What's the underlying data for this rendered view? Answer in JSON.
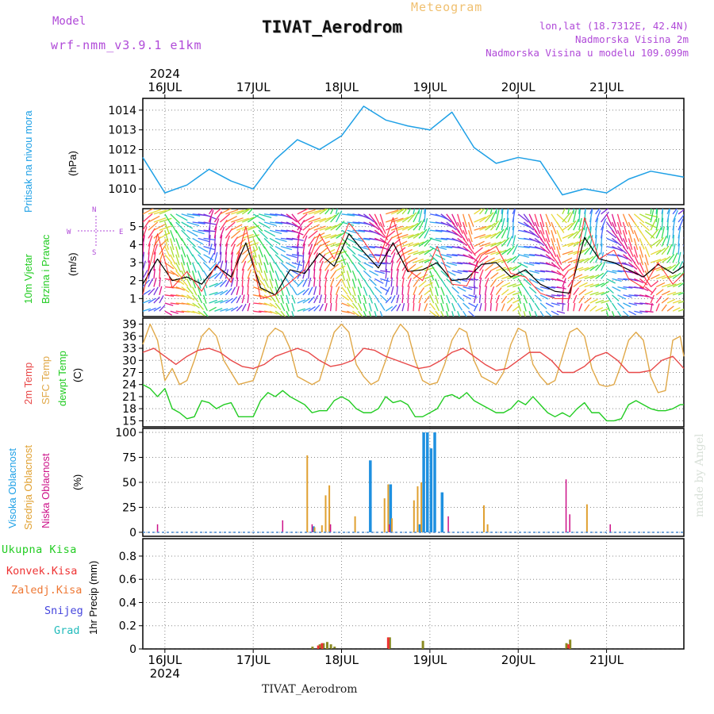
{
  "header": {
    "model_label": "Model",
    "model_name": "wrf-nmm_v3.9.1  e1km",
    "product": "Meteogram",
    "station": "TIVAT_Aerodrom",
    "lonlat": "lon,lat (18.7312E, 42.4N)",
    "elevation": "Nadmorska Visina 2m",
    "model_elevation": "Nadmorska Visina u modelu 109.099m",
    "footer_station": "TIVAT_Aerodrom",
    "credit": "made by Angel"
  },
  "time_axis": {
    "year": "2024",
    "days": [
      "16JUL",
      "17JUL",
      "18JUL",
      "19JUL",
      "20JUL",
      "21JUL"
    ],
    "start_hour_offset": -6,
    "end_hour_offset": 141
  },
  "colors": {
    "pressure": "#1ea0e6",
    "temp2m": "#e84848",
    "sfc_temp": "#e0a848",
    "dewpoint": "#22cc22",
    "wind_speed": "#000000",
    "gust": "#ff3030",
    "cloud_high": "#1e90e0",
    "cloud_mid": "#e0a030",
    "cloud_low": "#cc1188",
    "precip_total": "#22cc22",
    "precip_conv": "#ee3333",
    "precip_strat": "#ee7733",
    "snow": "#4444dd",
    "hail": "#22bbbb"
  },
  "panel_labels": {
    "pressure": {
      "label": "Pritisak na nivou mora",
      "unit": "(hPa)"
    },
    "wind": {
      "label1": "10m Vjetar",
      "label2": "Brzina i Pravac",
      "unit": "(m/s)",
      "compass": [
        "N",
        "S",
        "W",
        "E"
      ]
    },
    "temp": {
      "l1": "2m Temp",
      "l2": "SFC Temp",
      "l3": "dewpt Temp",
      "unit": "(C)"
    },
    "cloud": {
      "l1": "Visoka Oblacnost",
      "l2": "Srednja Oblacnost",
      "l3": "Niska Oblacnost",
      "unit": "(%)"
    },
    "precip": {
      "items": [
        "Ukupna Kisa",
        "Konvek.Kisa",
        "Zaledj.Kisa",
        "Snijeg",
        "Grad"
      ],
      "axis": "1hr Precip (mm)"
    }
  },
  "chart_data": [
    {
      "type": "line",
      "id": "pressure",
      "ylim": [
        1009.2,
        1014.6
      ],
      "yticks": [
        1010,
        1011,
        1012,
        1013,
        1014
      ],
      "series": [
        {
          "x": [
            -6,
            0,
            6,
            12,
            18,
            24,
            30,
            36,
            42,
            48,
            54,
            60,
            66,
            72,
            78,
            84,
            90,
            96,
            102,
            108,
            114,
            120,
            126,
            132,
            138,
            141
          ],
          "values": [
            1011.6,
            1009.8,
            1010.2,
            1011.0,
            1010.4,
            1010.0,
            1011.5,
            1012.5,
            1012.0,
            1012.7,
            1014.2,
            1013.5,
            1013.2,
            1013.0,
            1013.9,
            1012.1,
            1011.3,
            1011.6,
            1011.4,
            1009.7,
            1010.0,
            1009.8,
            1010.5,
            1010.9,
            1010.7,
            1010.6
          ]
        }
      ]
    },
    {
      "type": "line",
      "id": "wind",
      "ylim": [
        0,
        6
      ],
      "yticks": [
        1,
        2,
        3,
        4,
        5
      ],
      "series": [
        {
          "x": [
            -6,
            -2,
            2,
            6,
            10,
            14,
            18,
            22,
            26,
            30,
            34,
            38,
            42,
            46,
            50,
            54,
            58,
            62,
            66,
            70,
            74,
            78,
            82,
            86,
            90,
            94,
            98,
            102,
            106,
            110,
            114,
            118,
            122,
            126,
            130,
            134,
            138,
            141
          ],
          "values": [
            1.8,
            3.2,
            2.0,
            2.2,
            1.8,
            2.8,
            2.2,
            4.1,
            1.6,
            1.2,
            2.6,
            2.4,
            3.5,
            2.8,
            4.6,
            3.6,
            2.7,
            4.1,
            2.5,
            2.6,
            3.0,
            2.0,
            2.1,
            2.9,
            3.0,
            2.2,
            2.6,
            1.8,
            1.4,
            1.3,
            4.4,
            3.2,
            3.0,
            2.6,
            2.2,
            2.9,
            2.4,
            2.8
          ]
        },
        {
          "x": [
            -6,
            -2,
            2,
            6,
            10,
            14,
            18,
            22,
            26,
            30,
            34,
            38,
            42,
            46,
            50,
            54,
            58,
            62,
            66,
            70,
            74,
            78,
            82,
            86,
            90,
            94,
            98,
            102,
            106,
            110,
            114,
            118,
            122,
            126,
            130,
            134,
            138,
            141
          ],
          "values": [
            1.2,
            4.6,
            1.6,
            2.5,
            1.4,
            2.9,
            1.9,
            5.0,
            1.0,
            1.2,
            1.9,
            2.6,
            4.6,
            3.2,
            5.2,
            4.2,
            3.0,
            5.5,
            2.6,
            2.0,
            3.9,
            1.8,
            1.7,
            3.4,
            3.9,
            2.4,
            2.2,
            1.3,
            1.0,
            1.0,
            5.5,
            3.2,
            3.7,
            2.1,
            1.6,
            3.0,
            1.8,
            2.4
          ]
        }
      ],
      "wind_direction_pattern": "diurnal"
    },
    {
      "type": "line",
      "id": "temp",
      "ylim": [
        13.5,
        40.5
      ],
      "yticks": [
        15,
        18,
        21,
        24,
        27,
        30,
        33,
        36,
        39
      ],
      "series": [
        {
          "x": [
            -6,
            -3,
            0,
            3,
            6,
            9,
            12,
            15,
            18,
            21,
            24,
            27,
            30,
            33,
            36,
            39,
            42,
            45,
            48,
            51,
            54,
            57,
            60,
            63,
            66,
            69,
            72,
            75,
            78,
            81,
            84,
            87,
            90,
            93,
            96,
            99,
            102,
            105,
            108,
            111,
            114,
            117,
            120,
            123,
            126,
            129,
            132,
            135,
            138,
            141
          ],
          "values": [
            32,
            33,
            31,
            29,
            31,
            32.5,
            33,
            32,
            30,
            28.5,
            28,
            29,
            31,
            32,
            33,
            32,
            30,
            28.5,
            29,
            30,
            33,
            32.5,
            31,
            30,
            29,
            28,
            28.5,
            30,
            32,
            33,
            31,
            29,
            27.5,
            28,
            30,
            32,
            32,
            30,
            27,
            27,
            28.5,
            31,
            32,
            30,
            27,
            27,
            27.5,
            30,
            31,
            28
          ]
        },
        {
          "x": [
            -6,
            -4,
            -2,
            0,
            2,
            4,
            6,
            8,
            10,
            12,
            14,
            16,
            18,
            20,
            22,
            24,
            26,
            28,
            30,
            32,
            34,
            36,
            38,
            40,
            42,
            44,
            46,
            48,
            50,
            52,
            54,
            56,
            58,
            60,
            62,
            64,
            66,
            68,
            70,
            72,
            74,
            76,
            78,
            80,
            82,
            84,
            86,
            88,
            90,
            92,
            94,
            96,
            98,
            100,
            102,
            104,
            106,
            108,
            110,
            112,
            114,
            116,
            118,
            120,
            122,
            124,
            126,
            128,
            130,
            132,
            134,
            136,
            138,
            140,
            141
          ],
          "values": [
            34,
            39,
            35,
            25,
            28,
            24,
            25,
            30,
            36,
            38,
            36,
            30,
            27,
            24,
            24.5,
            25,
            30,
            36,
            38,
            37,
            33,
            26,
            25,
            24,
            25,
            31,
            37,
            39,
            37,
            29,
            26,
            24,
            25,
            30,
            36,
            39,
            37,
            30,
            25,
            24,
            24.5,
            29,
            35,
            38,
            37,
            30,
            26,
            25,
            24,
            27,
            34,
            38,
            37,
            29,
            26,
            24,
            25,
            31,
            37,
            38,
            36,
            28,
            24,
            23.5,
            24,
            29,
            35,
            37,
            35,
            26,
            22,
            22.5,
            35,
            36,
            31
          ]
        },
        {
          "x": [
            -6,
            -4,
            -2,
            0,
            2,
            4,
            6,
            8,
            10,
            12,
            14,
            16,
            18,
            20,
            22,
            24,
            26,
            28,
            30,
            32,
            34,
            36,
            38,
            40,
            42,
            44,
            46,
            48,
            50,
            52,
            54,
            56,
            58,
            60,
            62,
            64,
            66,
            68,
            70,
            72,
            74,
            76,
            78,
            80,
            82,
            84,
            86,
            88,
            90,
            92,
            94,
            96,
            98,
            100,
            102,
            104,
            106,
            108,
            110,
            112,
            114,
            116,
            118,
            120,
            122,
            124,
            126,
            128,
            130,
            132,
            134,
            136,
            138,
            140,
            141
          ],
          "values": [
            24,
            23,
            21,
            23,
            18,
            17,
            15.5,
            16,
            20,
            19.5,
            18,
            19,
            19.5,
            16,
            16,
            16,
            20,
            22,
            21,
            22.5,
            21,
            20,
            19,
            17,
            17.5,
            17.5,
            20,
            21,
            20,
            18,
            17,
            17,
            18,
            21,
            19.5,
            20,
            19,
            16,
            16,
            17,
            18,
            21,
            21.5,
            20.5,
            22,
            20,
            19,
            18,
            17,
            17,
            18,
            20,
            19,
            21,
            19,
            17,
            16,
            17,
            16,
            18,
            19.5,
            17,
            17,
            15,
            15,
            15.5,
            19,
            20,
            19,
            18,
            17.5,
            17.5,
            18,
            19,
            19
          ]
        }
      ]
    },
    {
      "type": "bar",
      "id": "cloud",
      "ylim": [
        -4,
        104
      ],
      "yticks": [
        0,
        25,
        50,
        75,
        100
      ],
      "series": [
        {
          "name": "high",
          "x": [
            40,
            55.5,
            61,
            69,
            70,
            71,
            72,
            73,
            75
          ],
          "values": [
            6,
            72,
            48,
            8,
            100,
            100,
            84,
            100,
            40
          ]
        },
        {
          "name": "mid",
          "x": [
            39,
            41,
            43,
            44,
            45,
            52,
            60,
            61,
            62,
            68,
            69,
            70,
            87,
            88,
            115
          ],
          "values": [
            77,
            5,
            7,
            37,
            47,
            16,
            34,
            48,
            14,
            32,
            46,
            50,
            27,
            8,
            28
          ]
        },
        {
          "name": "low",
          "x": [
            -2,
            32,
            40,
            45,
            61,
            77,
            109,
            110,
            121
          ],
          "values": [
            8,
            12,
            8,
            8,
            8,
            16,
            53,
            18,
            8
          ]
        }
      ]
    },
    {
      "type": "bar",
      "id": "precip",
      "ylim": [
        0,
        0.95
      ],
      "yticks": [
        0,
        0.2,
        0.4,
        0.6,
        0.8
      ],
      "series": [
        {
          "name": "total",
          "x": [
            40,
            42,
            43,
            44,
            45,
            46,
            61,
            70,
            109,
            110
          ],
          "values": [
            0.02,
            0.04,
            0.05,
            0.06,
            0.04,
            0.02,
            0.1,
            0.07,
            0.05,
            0.08
          ]
        },
        {
          "name": "convective",
          "x": [
            42,
            43,
            61,
            110
          ],
          "values": [
            0.03,
            0.05,
            0.1,
            0.04
          ]
        }
      ]
    }
  ]
}
